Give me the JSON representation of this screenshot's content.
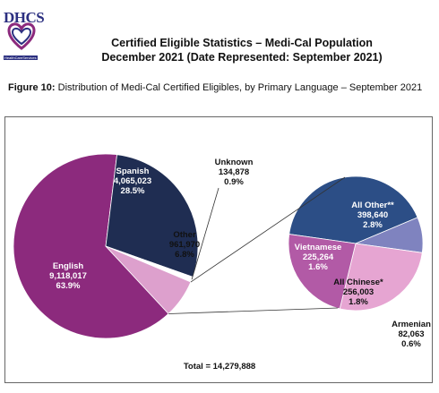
{
  "header": {
    "logo_text": "DHCS",
    "logo_subtext": "HealthCareServices",
    "title_line1": "Certified Eligible Statistics – Medi-Cal Population",
    "title_line2": "December 2021 (Date Represented: September 2021)",
    "figure_label": "Figure 10:",
    "figure_caption": " Distribution of Medi-Cal Certified Eligibles, by Primary Language – September 2021"
  },
  "colors": {
    "english": "#8c2a7d",
    "spanish": "#1f2d52",
    "other": "#dda0cd",
    "unknown": "#ffffff",
    "all_other": "#2c4e86",
    "armenian": "#7f83bf",
    "all_chinese": "#e6a5d2",
    "vietnamese": "#b25aa6"
  },
  "chart_data": [
    {
      "type": "pie",
      "title": "",
      "slices": [
        {
          "label": "English",
          "value": 9118017,
          "value_text": "9,118,017",
          "percent": 63.9,
          "percent_text": "63.9%"
        },
        {
          "label": "Spanish",
          "value": 4065023,
          "value_text": "4,065,023",
          "percent": 28.5,
          "percent_text": "28.5%"
        },
        {
          "label": "Unknown",
          "value": 134878,
          "value_text": "134,878",
          "percent": 0.9,
          "percent_text": "0.9%"
        },
        {
          "label": "Other",
          "value": 961970,
          "value_text": "961,970",
          "percent": 6.8,
          "percent_text": "6.8%"
        }
      ],
      "total_text": "Total = 14,279,888"
    },
    {
      "type": "pie",
      "title": "",
      "breakdown_of": "Other",
      "slices": [
        {
          "label": "All Other**",
          "value": 398640,
          "value_text": "398,640",
          "percent": 2.8,
          "percent_text": "2.8%"
        },
        {
          "label": "Armenian",
          "value": 82063,
          "value_text": "82,063",
          "percent": 0.6,
          "percent_text": "0.6%"
        },
        {
          "label": "All Chinese*",
          "value": 256003,
          "value_text": "256,003",
          "percent": 1.8,
          "percent_text": "1.8%"
        },
        {
          "label": "Vietnamese",
          "value": 225264,
          "value_text": "225,264",
          "percent": 1.6,
          "percent_text": "1.6%"
        }
      ]
    }
  ]
}
